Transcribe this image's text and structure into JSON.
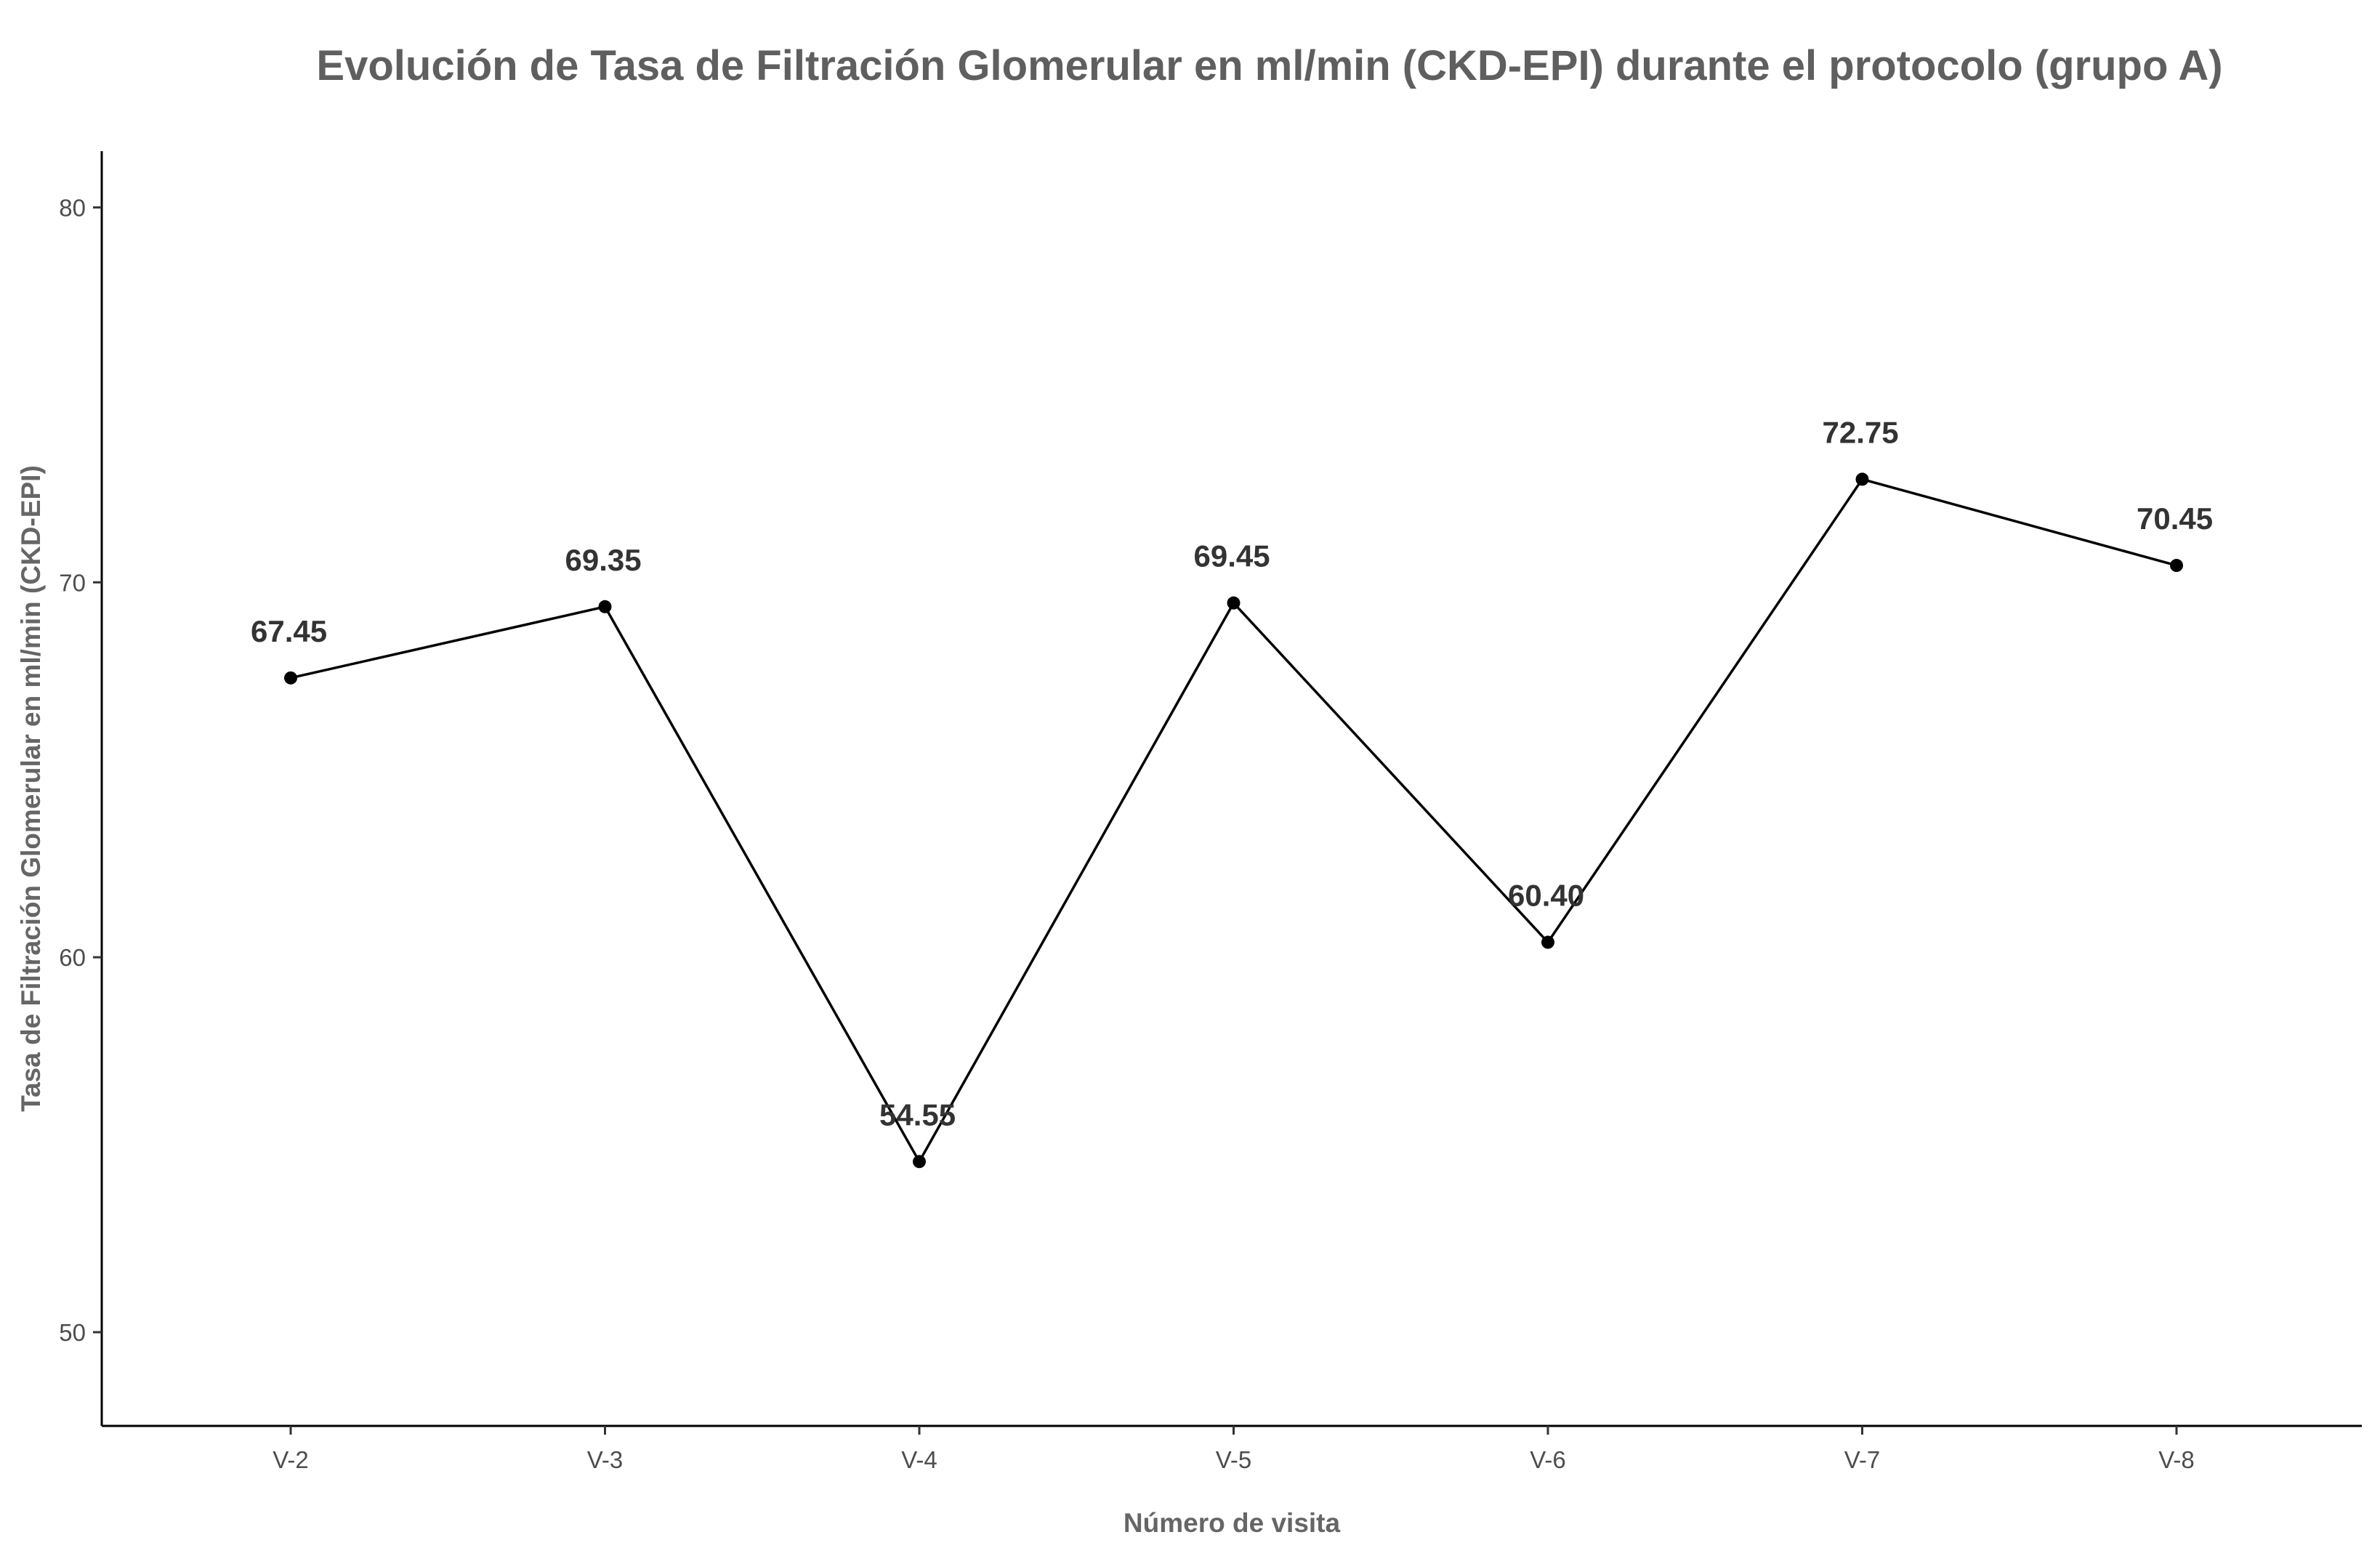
{
  "chart_data": {
    "type": "line",
    "title": "Evolución de Tasa de Filtración Glomerular en ml/min (CKD-EPI) durante el protocolo (grupo A)",
    "xlabel": "Número de visita",
    "ylabel": "Tasa de Filtración Glomerular en ml/min (CKD-EPI)",
    "categories": [
      "V-2",
      "V-3",
      "V-4",
      "V-5",
      "V-6",
      "V-7",
      "V-8"
    ],
    "values": [
      67.45,
      69.35,
      54.55,
      69.45,
      60.4,
      72.75,
      70.45
    ],
    "data_labels": [
      "67.45",
      "69.35",
      "54.55",
      "69.45",
      "60.40",
      "72.75",
      "70.45"
    ],
    "ylim": [
      47.5,
      81.5
    ],
    "yticks": [
      50,
      60,
      70,
      80
    ],
    "ytick_labels": [
      "50",
      "60",
      "70",
      "80"
    ],
    "grid": false,
    "colors": {
      "line": "#000000",
      "point": "#000000",
      "axis": "#000000"
    }
  }
}
